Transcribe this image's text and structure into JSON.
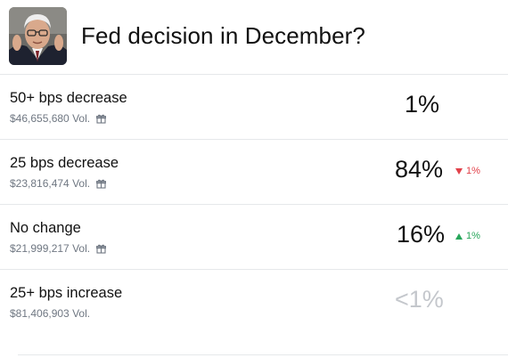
{
  "market": {
    "title": "Fed decision in December?",
    "avatar_icon": "fed-chair-portrait-icon"
  },
  "outcomes": [
    {
      "label": "50+ bps decrease",
      "volume": "$46,655,680 Vol.",
      "gift_icon": "gift-icon",
      "probability": "1%",
      "change": "",
      "change_dir": ""
    },
    {
      "label": "25 bps decrease",
      "volume": "$23,816,474 Vol.",
      "gift_icon": "gift-icon",
      "probability": "84%",
      "change": "1%",
      "change_dir": "down"
    },
    {
      "label": "No change",
      "volume": "$21,999,217 Vol.",
      "gift_icon": "gift-icon",
      "probability": "16%",
      "change": "1%",
      "change_dir": "up"
    },
    {
      "label": "25+ bps increase",
      "volume": "$81,406,903 Vol.",
      "gift_icon": "",
      "probability": "<1%",
      "change": "",
      "change_dir": ""
    }
  ],
  "colors": {
    "down": "#e2414a",
    "up": "#27a65a",
    "dim": "#c4c7cc",
    "divider": "#e6e8ea"
  }
}
